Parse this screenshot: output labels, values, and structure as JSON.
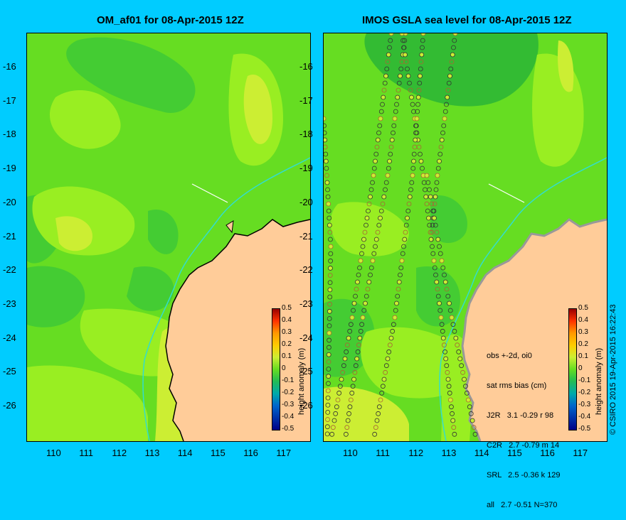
{
  "left_title": "OM_af01 for 08-Apr-2015 12Z",
  "right_title": "IMOS GSLA sea level  for 08-Apr-2015 12Z",
  "lat_ticks": [
    "-16",
    "-17",
    "-18",
    "-19",
    "-20",
    "-21",
    "-22",
    "-23",
    "-24",
    "-25",
    "-26"
  ],
  "lon_ticks": [
    "110",
    "111",
    "112",
    "113",
    "114",
    "115",
    "116",
    "117"
  ],
  "colorbar": {
    "title": "height anomaly (m)",
    "labels": [
      "0.5",
      "0.4",
      "0.3",
      "0.2",
      "0.1",
      "0",
      "-0.1",
      "-0.2",
      "-0.3",
      "-0.4",
      "-0.5"
    ]
  },
  "stats": {
    "line1": "obs +-2d, oi0",
    "line2": "sat rms bias (cm)",
    "line3": "J2R   3.1 -0.29 r 98",
    "line4": "C2R   2.7 -0.79 m 14",
    "line5": "SRL   2.5 -0.36 k 129",
    "line6": "all   2.7 -0.51 N=370"
  },
  "copyright": "© CSIRO 2015  19-Apr-2015 16:22:43",
  "colors": {
    "background": "#00ccff",
    "land": "#ffcc99",
    "field_base": "#66dd22",
    "field_light": "#99ee22",
    "field_yellow": "#ccee33",
    "field_dark": "#33bb33"
  }
}
